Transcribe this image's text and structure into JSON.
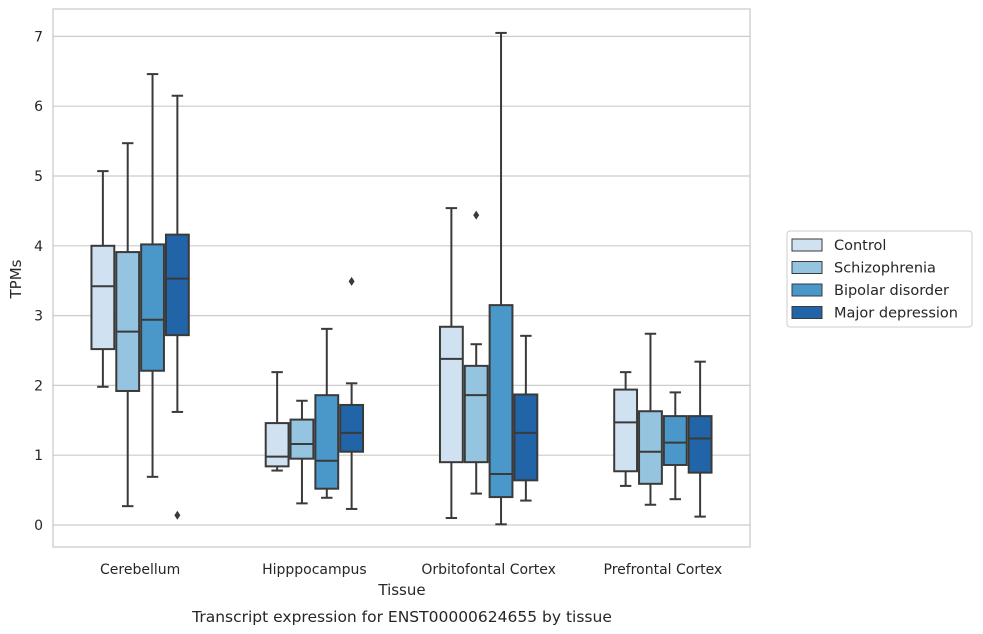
{
  "chart_data": {
    "type": "box",
    "xlabel": "Tissue",
    "ylabel": "TPMs",
    "caption": "Transcript expression for ENST00000624655 by tissue",
    "categories": [
      "Cerebellum",
      "Hipppocampus",
      "Orbitofontal Cortex",
      "Prefrontal Cortex"
    ],
    "ylim": [
      -0.33,
      7.4
    ],
    "yticks": [
      0,
      1,
      2,
      3,
      4,
      5,
      6,
      7
    ],
    "grid": "horizontal",
    "legend_position": "right",
    "series": [
      {
        "name": "Control",
        "color": "#d0e1f2",
        "boxes": [
          {
            "whisker_low": 1.98,
            "q1": 2.52,
            "median": 3.42,
            "q3": 4.0,
            "whisker_high": 5.07,
            "outliers": []
          },
          {
            "whisker_low": 0.78,
            "q1": 0.84,
            "median": 0.98,
            "q3": 1.46,
            "whisker_high": 2.19,
            "outliers": []
          },
          {
            "whisker_low": 0.1,
            "q1": 0.9,
            "median": 2.38,
            "q3": 2.84,
            "whisker_high": 4.54,
            "outliers": []
          },
          {
            "whisker_low": 0.56,
            "q1": 0.77,
            "median": 1.47,
            "q3": 1.94,
            "whisker_high": 2.19,
            "outliers": []
          }
        ]
      },
      {
        "name": "Schizophrenia",
        "color": "#94c4df",
        "boxes": [
          {
            "whisker_low": 0.27,
            "q1": 1.92,
            "median": 2.77,
            "q3": 3.91,
            "whisker_high": 5.47,
            "outliers": []
          },
          {
            "whisker_low": 0.31,
            "q1": 0.95,
            "median": 1.16,
            "q3": 1.51,
            "whisker_high": 1.78,
            "outliers": []
          },
          {
            "whisker_low": 0.45,
            "q1": 0.9,
            "median": 1.86,
            "q3": 2.28,
            "whisker_high": 2.59,
            "outliers": [
              4.44
            ]
          },
          {
            "whisker_low": 0.29,
            "q1": 0.59,
            "median": 1.05,
            "q3": 1.63,
            "whisker_high": 2.74,
            "outliers": []
          }
        ]
      },
      {
        "name": "Bipolar disorder",
        "color": "#4a98c9",
        "boxes": [
          {
            "whisker_low": 0.69,
            "q1": 2.21,
            "median": 2.94,
            "q3": 4.02,
            "whisker_high": 6.46,
            "outliers": []
          },
          {
            "whisker_low": 0.39,
            "q1": 0.52,
            "median": 0.92,
            "q3": 1.86,
            "whisker_high": 2.81,
            "outliers": []
          },
          {
            "whisker_low": 0.01,
            "q1": 0.4,
            "median": 0.73,
            "q3": 3.15,
            "whisker_high": 7.05,
            "outliers": []
          },
          {
            "whisker_low": 0.37,
            "q1": 0.86,
            "median": 1.18,
            "q3": 1.56,
            "whisker_high": 1.9,
            "outliers": []
          }
        ]
      },
      {
        "name": "Major depression",
        "color": "#2264a8",
        "boxes": [
          {
            "whisker_low": 1.62,
            "q1": 2.72,
            "median": 3.53,
            "q3": 4.16,
            "whisker_high": 6.15,
            "outliers": [
              0.14
            ]
          },
          {
            "whisker_low": 0.23,
            "q1": 1.05,
            "median": 1.32,
            "q3": 1.72,
            "whisker_high": 2.03,
            "outliers": [
              3.49
            ]
          },
          {
            "whisker_low": 0.35,
            "q1": 0.64,
            "median": 1.32,
            "q3": 1.87,
            "whisker_high": 2.71,
            "outliers": []
          },
          {
            "whisker_low": 0.12,
            "q1": 0.75,
            "median": 1.24,
            "q3": 1.56,
            "whisker_high": 2.34,
            "outliers": []
          }
        ]
      }
    ]
  }
}
